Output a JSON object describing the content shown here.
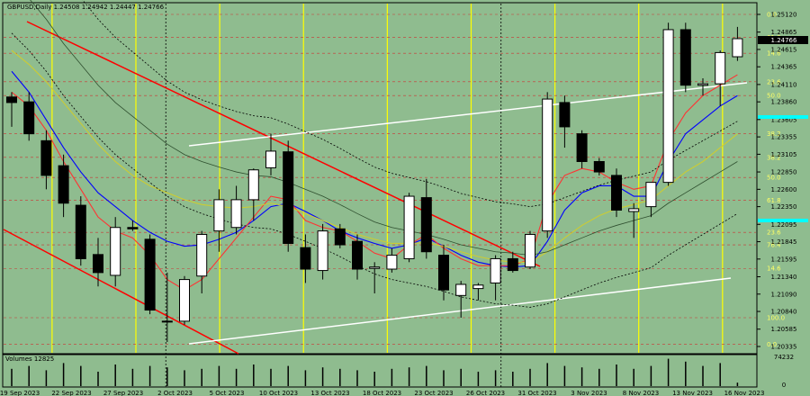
{
  "header": {
    "symbol_line": "GBPUSD,Daily  1.24508 1.24942 1.24447 1.24766",
    "volume_label": "Volumes 12825"
  },
  "colors": {
    "background": "#8fbc8f",
    "frame": "#000000",
    "bull_candle": "#ffffff",
    "bear_candle": "#000000",
    "vertical_yellow": "#ffff00",
    "horizontal_dashed": "#cc3333",
    "trend_red": "#ff0000",
    "trend_white": "#ffffff",
    "ma_red": "#ff3333",
    "ma_blue": "#0000ff",
    "ma_yellow": "#cccc33",
    "ma_darkgreen": "#2f4f2f",
    "band_black_dotted": "#000000",
    "fib_label": "#ffff66",
    "current_price_box": "#000000",
    "cyan_marker": "#00ffff"
  },
  "chart_data": {
    "type": "candlestick",
    "y_axis_ticks": [
      "1.25120",
      "1.24865",
      "1.24615",
      "1.24365",
      "1.24110",
      "1.23860",
      "1.23605",
      "1.23355",
      "1.23105",
      "1.22850",
      "1.22600",
      "1.22350",
      "1.22095",
      "1.21845",
      "1.21595",
      "1.21340",
      "1.21090",
      "1.20840",
      "1.20585",
      "1.20335"
    ],
    "current_price": "1.24766",
    "x_axis_labels": [
      "19 Sep 2023",
      "22 Sep 2023",
      "27 Sep 2023",
      "2 Oct 2023",
      "5 Oct 2023",
      "10 Oct 2023",
      "13 Oct 2023",
      "18 Oct 2023",
      "23 Oct 2023",
      "26 Oct 2023",
      "31 Oct 2023",
      "3 Nov 2023",
      "8 Nov 2023",
      "13 Nov 2023",
      "16 Nov 2023"
    ],
    "fib_levels": [
      {
        "label": "0.0",
        "price": 1.2037
      },
      {
        "label": "100.0",
        "price": 1.2075
      },
      {
        "label": "14.6",
        "price": 1.2146
      },
      {
        "label": "76.4",
        "price": 1.218
      },
      {
        "label": "23.6",
        "price": 1.2198
      },
      {
        "label": "61.8",
        "price": 1.2244
      },
      {
        "label": "50.0",
        "price": 1.2277
      },
      {
        "label": "38.2",
        "price": 1.2306
      },
      {
        "label": "38.2",
        "price": 1.234
      },
      {
        "label": "50.0",
        "price": 1.2395
      },
      {
        "label": "23.6",
        "price": 1.2415
      },
      {
        "label": "14.6",
        "price": 1.2456
      },
      {
        "label": "61.8",
        "price": 1.2479
      },
      {
        "label": "0.0",
        "price": 1.2512
      }
    ],
    "candles": [
      {
        "o": 1.2393,
        "h": 1.24,
        "l": 1.235,
        "c": 1.2385
      },
      {
        "o": 1.2386,
        "h": 1.24,
        "l": 1.233,
        "c": 1.234
      },
      {
        "o": 1.233,
        "h": 1.2345,
        "l": 1.226,
        "c": 1.228
      },
      {
        "o": 1.2294,
        "h": 1.231,
        "l": 1.222,
        "c": 1.224
      },
      {
        "o": 1.2237,
        "h": 1.225,
        "l": 1.215,
        "c": 1.216
      },
      {
        "o": 1.2166,
        "h": 1.219,
        "l": 1.212,
        "c": 1.214
      },
      {
        "o": 1.2136,
        "h": 1.222,
        "l": 1.212,
        "c": 1.2205
      },
      {
        "o": 1.2205,
        "h": 1.2215,
        "l": 1.22,
        "c": 1.2203
      },
      {
        "o": 1.2188,
        "h": 1.2195,
        "l": 1.208,
        "c": 1.2086
      },
      {
        "o": 1.207,
        "h": 1.214,
        "l": 1.204,
        "c": 1.207
      },
      {
        "o": 1.207,
        "h": 1.2135,
        "l": 1.2065,
        "c": 1.213
      },
      {
        "o": 1.2135,
        "h": 1.22,
        "l": 1.211,
        "c": 1.2195
      },
      {
        "o": 1.22,
        "h": 1.226,
        "l": 1.217,
        "c": 1.2245
      },
      {
        "o": 1.2205,
        "h": 1.2265,
        "l": 1.2195,
        "c": 1.2245
      },
      {
        "o": 1.2245,
        "h": 1.229,
        "l": 1.2215,
        "c": 1.2288
      },
      {
        "o": 1.2291,
        "h": 1.234,
        "l": 1.228,
        "c": 1.2315
      },
      {
        "o": 1.2314,
        "h": 1.233,
        "l": 1.217,
        "c": 1.2182
      },
      {
        "o": 1.2176,
        "h": 1.2195,
        "l": 1.2125,
        "c": 1.2145
      },
      {
        "o": 1.2143,
        "h": 1.221,
        "l": 1.213,
        "c": 1.22
      },
      {
        "o": 1.2203,
        "h": 1.221,
        "l": 1.2175,
        "c": 1.218
      },
      {
        "o": 1.2185,
        "h": 1.2195,
        "l": 1.213,
        "c": 1.2145
      },
      {
        "o": 1.2146,
        "h": 1.2155,
        "l": 1.211,
        "c": 1.2148
      },
      {
        "o": 1.2145,
        "h": 1.2175,
        "l": 1.214,
        "c": 1.2165
      },
      {
        "o": 1.216,
        "h": 1.2255,
        "l": 1.2155,
        "c": 1.225
      },
      {
        "o": 1.2248,
        "h": 1.2275,
        "l": 1.216,
        "c": 1.217
      },
      {
        "o": 1.2165,
        "h": 1.218,
        "l": 1.21,
        "c": 1.2115
      },
      {
        "o": 1.2107,
        "h": 1.2128,
        "l": 1.2075,
        "c": 1.2123
      },
      {
        "o": 1.2117,
        "h": 1.2125,
        "l": 1.21,
        "c": 1.2122
      },
      {
        "o": 1.2125,
        "h": 1.2165,
        "l": 1.21,
        "c": 1.216
      },
      {
        "o": 1.216,
        "h": 1.217,
        "l": 1.214,
        "c": 1.2143
      },
      {
        "o": 1.2148,
        "h": 1.22,
        "l": 1.2145,
        "c": 1.2195
      },
      {
        "o": 1.22,
        "h": 1.24,
        "l": 1.219,
        "c": 1.239
      },
      {
        "o": 1.2385,
        "h": 1.2395,
        "l": 1.232,
        "c": 1.235
      },
      {
        "o": 1.234,
        "h": 1.2345,
        "l": 1.229,
        "c": 1.23
      },
      {
        "o": 1.23,
        "h": 1.2305,
        "l": 1.228,
        "c": 1.2285
      },
      {
        "o": 1.228,
        "h": 1.229,
        "l": 1.222,
        "c": 1.223
      },
      {
        "o": 1.2228,
        "h": 1.224,
        "l": 1.219,
        "c": 1.2232
      },
      {
        "o": 1.2235,
        "h": 1.227,
        "l": 1.222,
        "c": 1.227
      },
      {
        "o": 1.227,
        "h": 1.25,
        "l": 1.2265,
        "c": 1.249
      },
      {
        "o": 1.249,
        "h": 1.25,
        "l": 1.24,
        "c": 1.241
      },
      {
        "o": 1.241,
        "h": 1.242,
        "l": 1.2395,
        "c": 1.2412
      },
      {
        "o": 1.2412,
        "h": 1.246,
        "l": 1.238,
        "c": 1.2457
      },
      {
        "o": 1.2451,
        "h": 1.2494,
        "l": 1.2445,
        "c": 1.2477
      }
    ],
    "moving_averages": {
      "blue": [
        1.243,
        1.24,
        1.236,
        1.232,
        1.2285,
        1.2255,
        1.2235,
        1.2215,
        1.2198,
        1.2185,
        1.2178,
        1.218,
        1.2188,
        1.2198,
        1.2215,
        1.2235,
        1.224,
        1.2228,
        1.2215,
        1.22,
        1.219,
        1.2182,
        1.2175,
        1.218,
        1.219,
        1.2178,
        1.2165,
        1.2155,
        1.215,
        1.2148,
        1.215,
        1.2185,
        1.223,
        1.2255,
        1.2265,
        1.2265,
        1.225,
        1.225,
        1.23,
        1.234,
        1.236,
        1.238,
        1.2395
      ],
      "red": [
        1.24,
        1.238,
        1.2345,
        1.23,
        1.226,
        1.222,
        1.22,
        1.219,
        1.2165,
        1.213,
        1.2115,
        1.213,
        1.216,
        1.219,
        1.222,
        1.225,
        1.2245,
        1.2215,
        1.2205,
        1.22,
        1.2185,
        1.2168,
        1.216,
        1.218,
        1.2195,
        1.2175,
        1.216,
        1.215,
        1.215,
        1.215,
        1.216,
        1.224,
        1.228,
        1.229,
        1.2285,
        1.227,
        1.226,
        1.2265,
        1.233,
        1.237,
        1.2395,
        1.241,
        1.2425
      ],
      "yellow": [
        1.246,
        1.244,
        1.2415,
        1.2385,
        1.2355,
        1.2325,
        1.23,
        1.228,
        1.2265,
        1.2255,
        1.2245,
        1.2238,
        1.2235,
        1.2233,
        1.2235,
        1.224,
        1.2235,
        1.2225,
        1.2215,
        1.2205,
        1.2195,
        1.2188,
        1.2182,
        1.2182,
        1.2183,
        1.2178,
        1.217,
        1.2163,
        1.2158,
        1.2155,
        1.2155,
        1.217,
        1.219,
        1.2208,
        1.2222,
        1.2232,
        1.2238,
        1.2245,
        1.2265,
        1.2285,
        1.23,
        1.232,
        1.234
      ],
      "darkgreen": [
        1.256,
        1.2535,
        1.2505,
        1.247,
        1.244,
        1.241,
        1.2385,
        1.2365,
        1.2345,
        1.2325,
        1.231,
        1.23,
        1.2292,
        1.2285,
        1.228,
        1.2278,
        1.227,
        1.226,
        1.225,
        1.2238,
        1.2225,
        1.2213,
        1.2205,
        1.22,
        1.2195,
        1.2188,
        1.218,
        1.2175,
        1.217,
        1.2168,
        1.2165,
        1.217,
        1.218,
        1.219,
        1.22,
        1.2208,
        1.2215,
        1.2222,
        1.224,
        1.2255,
        1.227,
        1.2285,
        1.23
      ]
    },
    "volumes": [
      0.6,
      0.7,
      0.55,
      0.8,
      0.7,
      0.5,
      0.75,
      0.6,
      0.7,
      0.65,
      0.55,
      0.6,
      0.7,
      0.6,
      0.75,
      0.6,
      0.7,
      0.55,
      0.65,
      0.6,
      0.55,
      0.5,
      0.6,
      0.65,
      0.7,
      0.55,
      0.6,
      0.5,
      0.55,
      0.5,
      0.6,
      0.8,
      0.7,
      0.65,
      0.6,
      0.75,
      0.6,
      0.7,
      0.95,
      0.85,
      0.7,
      0.8,
      0.12
    ],
    "volume_axis": [
      "74232",
      "0"
    ]
  }
}
